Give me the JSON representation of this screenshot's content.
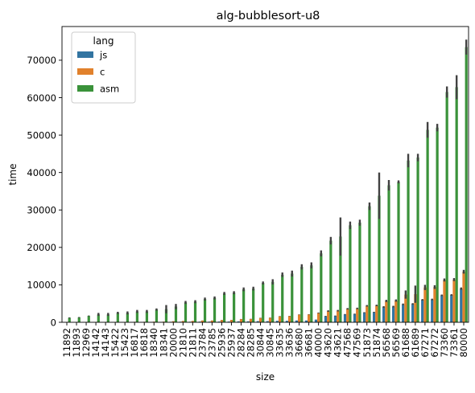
{
  "chart_data": {
    "type": "bar",
    "title": "alg-bubblesort-u8",
    "xlabel": "size",
    "ylabel": "time",
    "ylim": [
      0,
      79000
    ],
    "yticks": [
      0,
      10000,
      20000,
      30000,
      40000,
      50000,
      60000,
      70000
    ],
    "grid": false,
    "legend": {
      "title": "lang",
      "placement": "top-left"
    },
    "categories": [
      "11892",
      "11893",
      "12969",
      "14142",
      "14143",
      "15422",
      "15423",
      "16817",
      "16818",
      "18340",
      "18341",
      "20000",
      "21810",
      "21811",
      "23784",
      "23785",
      "25936",
      "25937",
      "28284",
      "28285",
      "30844",
      "30845",
      "33635",
      "33636",
      "36680",
      "36681",
      "40000",
      "43620",
      "43621",
      "47568",
      "47569",
      "51873",
      "51874",
      "56568",
      "56569",
      "61688",
      "61689",
      "67271",
      "67272",
      "73360",
      "73361",
      "80000"
    ],
    "series": [
      {
        "name": "js",
        "color": "#3274a1",
        "values": [
          30,
          30,
          40,
          45,
          45,
          55,
          55,
          70,
          70,
          90,
          90,
          110,
          130,
          130,
          160,
          160,
          190,
          190,
          240,
          240,
          300,
          300,
          380,
          380,
          470,
          470,
          700,
          1600,
          1700,
          2100,
          2200,
          2600,
          2700,
          4100,
          4200,
          4800,
          4900,
          6000,
          6100,
          7200,
          7300,
          9000
        ]
      },
      {
        "name": "c",
        "color": "#e1812c",
        "values": [
          60,
          60,
          70,
          80,
          80,
          90,
          90,
          120,
          120,
          160,
          160,
          270,
          330,
          340,
          450,
          460,
          600,
          620,
          850,
          880,
          1150,
          1200,
          1600,
          1650,
          2050,
          2100,
          2500,
          3000,
          3100,
          3600,
          3700,
          4400,
          4500,
          5700,
          5800,
          7400,
          7500,
          9300,
          9400,
          11300,
          11400,
          13500
        ]
      },
      {
        "name": "asm",
        "color": "#3a923a",
        "values": [
          1200,
          1300,
          1700,
          2100,
          2100,
          2500,
          2500,
          2900,
          2900,
          3400,
          3500,
          4200,
          5300,
          5500,
          6200,
          6500,
          7700,
          7900,
          8800,
          9000,
          10500,
          10800,
          12700,
          13000,
          14800,
          15200,
          18400,
          21800,
          22900,
          25900,
          26600,
          31000,
          33800,
          36600,
          37500,
          43200,
          44000,
          51400,
          52000,
          61500,
          62800,
          73500
        ]
      }
    ],
    "error_high": {
      "js": [
        40,
        40,
        50,
        55,
        55,
        65,
        65,
        80,
        80,
        100,
        100,
        120,
        140,
        140,
        170,
        170,
        200,
        200,
        250,
        250,
        310,
        310,
        390,
        390,
        480,
        480,
        720,
        1700,
        1800,
        2200,
        2300,
        2700,
        2800,
        4300,
        4400,
        5000,
        5100,
        6200,
        6300,
        7400,
        7500,
        9300
      ],
      "c": [
        70,
        70,
        80,
        90,
        90,
        100,
        100,
        130,
        130,
        170,
        170,
        290,
        350,
        360,
        470,
        480,
        630,
        650,
        880,
        910,
        1200,
        1250,
        1650,
        1700,
        2100,
        2150,
        2600,
        3200,
        3300,
        3800,
        3900,
        4600,
        4700,
        6000,
        6100,
        8500,
        9800,
        10000,
        9900,
        11700,
        11800,
        14000
      ],
      "asm": [
        1300,
        1400,
        1800,
        2500,
        2500,
        2800,
        2900,
        3300,
        3300,
        3700,
        4600,
        4900,
        5700,
        5900,
        6600,
        6900,
        8100,
        8300,
        9300,
        9500,
        10900,
        11500,
        13300,
        13800,
        15500,
        16000,
        19200,
        22800,
        28000,
        26900,
        27400,
        32000,
        40000,
        38000,
        37900,
        45000,
        45000,
        53500,
        53000,
        63000,
        66000,
        75500
      ]
    }
  }
}
